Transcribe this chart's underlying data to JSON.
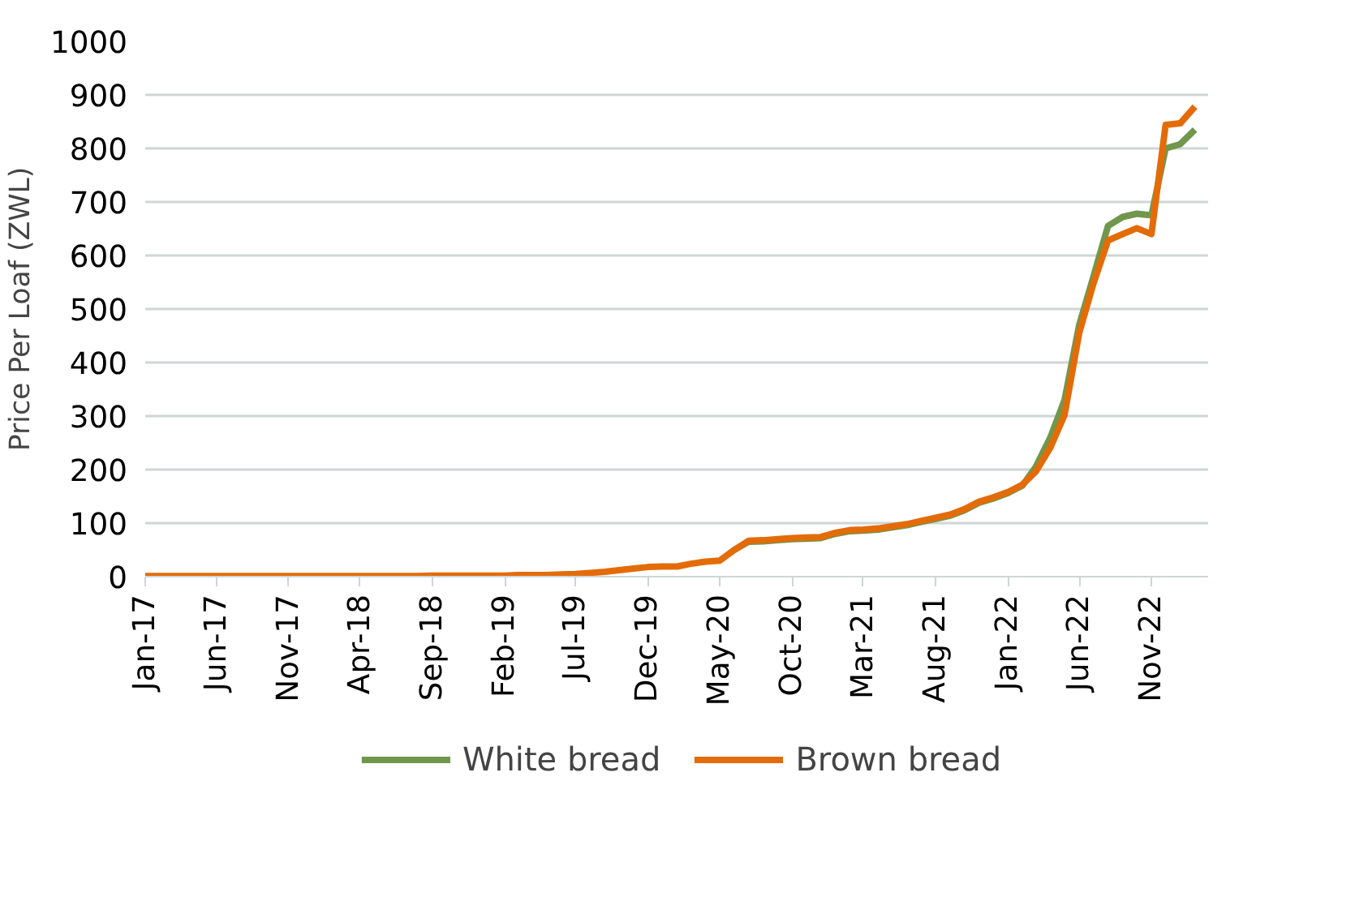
{
  "chart_data": {
    "type": "line",
    "ylabel": "Price Per Loaf (ZWL)",
    "x": [
      "2017-01",
      "2017-02",
      "2017-03",
      "2017-04",
      "2017-05",
      "2017-06",
      "2017-07",
      "2017-08",
      "2017-09",
      "2017-10",
      "2017-11",
      "2017-12",
      "2018-01",
      "2018-02",
      "2018-03",
      "2018-04",
      "2018-05",
      "2018-06",
      "2018-07",
      "2018-08",
      "2018-09",
      "2018-10",
      "2018-11",
      "2018-12",
      "2019-01",
      "2019-02",
      "2019-03",
      "2019-04",
      "2019-05",
      "2019-06",
      "2019-07",
      "2019-08",
      "2019-09",
      "2019-10",
      "2019-11",
      "2019-12",
      "2020-01",
      "2020-02",
      "2020-03",
      "2020-04",
      "2020-05",
      "2020-06",
      "2020-07",
      "2020-08",
      "2020-09",
      "2020-10",
      "2020-11",
      "2020-12",
      "2021-01",
      "2021-02",
      "2021-03",
      "2021-04",
      "2021-05",
      "2021-06",
      "2021-07",
      "2021-08",
      "2021-09",
      "2021-10",
      "2021-11",
      "2021-12",
      "2022-01",
      "2022-02",
      "2022-03",
      "2022-04",
      "2022-05",
      "2022-06",
      "2022-07",
      "2022-08",
      "2022-09",
      "2022-10",
      "2022-11",
      "2022-12",
      "2023-01",
      "2023-02"
    ],
    "series": [
      {
        "name": "White bread",
        "color": "#70974c",
        "values": [
          null,
          null,
          null,
          null,
          null,
          null,
          null,
          null,
          null,
          null,
          null,
          null,
          null,
          null,
          null,
          null,
          null,
          null,
          null,
          null,
          null,
          null,
          null,
          null,
          null,
          null,
          null,
          null,
          null,
          null,
          null,
          null,
          null,
          null,
          null,
          null,
          null,
          null,
          null,
          null,
          null,
          50,
          65,
          66,
          68,
          70,
          71,
          72,
          80,
          85,
          86,
          88,
          92,
          96,
          102,
          108,
          114,
          124,
          138,
          146,
          156,
          170,
          205,
          260,
          330,
          470,
          560,
          655,
          672,
          678,
          675,
          800,
          808,
          835
        ]
      },
      {
        "name": "Brown bread",
        "color": "#e36c09",
        "values": [
          1,
          1,
          1,
          1,
          1,
          1,
          1,
          1,
          1,
          1,
          1,
          1,
          1,
          1,
          1,
          1,
          1,
          1,
          1,
          1,
          2,
          2,
          2,
          2,
          2,
          2,
          3,
          3,
          3,
          4,
          5,
          7,
          9,
          12,
          15,
          18,
          19,
          19,
          24,
          28,
          30,
          50,
          67,
          68,
          70,
          72,
          73,
          74,
          82,
          87,
          88,
          90,
          94,
          98,
          104,
          110,
          116,
          126,
          140,
          148,
          158,
          172,
          196,
          241,
          302,
          455,
          547,
          628,
          640,
          651,
          640,
          844,
          847,
          878
        ]
      }
    ],
    "xlim": [
      "2017-01",
      "2023-03"
    ],
    "xticks": [
      {
        "value": "2017-01",
        "label": "Jan-17"
      },
      {
        "value": "2017-06",
        "label": "Jun-17"
      },
      {
        "value": "2017-11",
        "label": "Nov-17"
      },
      {
        "value": "2018-04",
        "label": "Apr-18"
      },
      {
        "value": "2018-09",
        "label": "Sep-18"
      },
      {
        "value": "2019-02",
        "label": "Feb-19"
      },
      {
        "value": "2019-07",
        "label": "Jul-19"
      },
      {
        "value": "2019-12",
        "label": "Dec-19"
      },
      {
        "value": "2020-05",
        "label": "May-20"
      },
      {
        "value": "2020-10",
        "label": "Oct-20"
      },
      {
        "value": "2021-03",
        "label": "Mar-21"
      },
      {
        "value": "2021-08",
        "label": "Aug-21"
      },
      {
        "value": "2022-01",
        "label": "Jan-22"
      },
      {
        "value": "2022-06",
        "label": "Jun-22"
      },
      {
        "value": "2022-11",
        "label": "Nov-22"
      }
    ],
    "ylim": [
      0,
      1000
    ],
    "yticks": [
      0,
      100,
      200,
      300,
      400,
      500,
      600,
      700,
      800,
      900,
      1000
    ],
    "grid": "y",
    "legend": "bottom",
    "marker": "none",
    "line_style": "solid"
  }
}
